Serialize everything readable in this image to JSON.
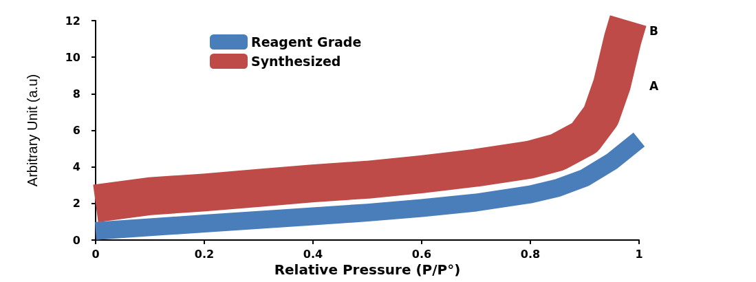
{
  "chart_data": {
    "type": "line",
    "xlabel": "Relative Pressure (P/P°)",
    "ylabel": "Arbitrary Unit (a.u)",
    "series": [
      {
        "name": "Reagent Grade",
        "color": "#4a7ebb",
        "x": [
          0,
          0.1,
          0.2,
          0.3,
          0.4,
          0.5,
          0.6,
          0.7,
          0.8,
          0.85,
          0.9,
          0.95,
          1.0
        ],
        "values": [
          0.5,
          0.7,
          0.9,
          1.1,
          1.3,
          1.5,
          1.75,
          2.05,
          2.5,
          2.85,
          3.4,
          4.3,
          5.5
        ]
      },
      {
        "name": "Synthesized",
        "color": "#be4b48",
        "x": [
          0,
          0.1,
          0.2,
          0.3,
          0.4,
          0.5,
          0.6,
          0.7,
          0.8,
          0.85,
          0.9,
          0.93,
          0.95,
          0.97,
          0.98
        ],
        "values": [
          2.0,
          2.4,
          2.6,
          2.85,
          3.1,
          3.3,
          3.6,
          3.95,
          4.4,
          4.8,
          5.6,
          6.8,
          8.5,
          11,
          12
        ]
      }
    ],
    "annotations": [
      "A",
      "B"
    ],
    "xlim": [
      0,
      1
    ],
    "xticks": [
      0,
      0.2,
      0.4,
      0.6,
      0.8,
      1
    ],
    "ylim": [
      0,
      12
    ],
    "yticks": [
      0,
      2,
      4,
      6,
      8,
      10,
      12
    ],
    "grid": false,
    "legend": "top",
    "line_style": "solid"
  }
}
